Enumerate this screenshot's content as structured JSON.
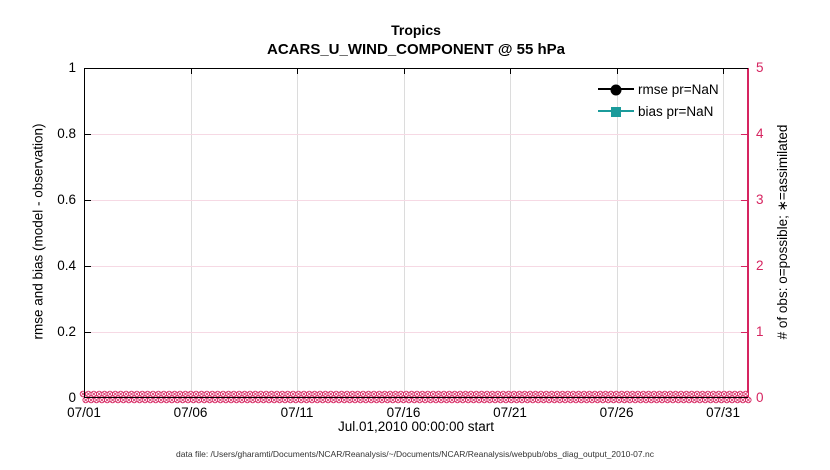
{
  "chart_data": {
    "type": "line",
    "title": "Tropics",
    "subtitle": "ACARS_U_WIND_COMPONENT @ 55 hPa",
    "xlabel": "Jul.01,2010 00:00:00 start",
    "ylabel_left": "rmse and bias (model - observation)",
    "ylabel_right": "# of obs: o=possible; ∗=assimilated",
    "footer": "data file: /Users/gharamti/Documents/NCAR/Reanalysis/~/Documents/NCAR/Reanalysis/webpub/obs_diag_output_2010-07.nc",
    "x_axis": {
      "lim_days": [
        0,
        31.17
      ],
      "tick_days": [
        0,
        5,
        10,
        15,
        20,
        25,
        30
      ],
      "tick_labels": [
        "07/01",
        "07/06",
        "07/11",
        "07/16",
        "07/21",
        "07/26",
        "07/31"
      ]
    },
    "y_axis_left": {
      "lim": [
        0,
        1
      ],
      "ticks": [
        0,
        0.2,
        0.4,
        0.6,
        0.8,
        1
      ],
      "tick_labels": [
        "0",
        "0.2",
        "0.4",
        "0.6",
        "0.8",
        "1"
      ],
      "color": "#000000"
    },
    "y_axis_right": {
      "lim": [
        0,
        5
      ],
      "ticks": [
        0,
        1,
        2,
        3,
        4,
        5
      ],
      "tick_labels": [
        "0",
        "1",
        "2",
        "3",
        "4",
        "5"
      ],
      "color": "#d62460"
    },
    "series": [
      {
        "name": "rmse pr=NaN",
        "color": "#000000",
        "marker": "circle",
        "values": "NaN"
      },
      {
        "name": "bias pr=NaN",
        "color": "#1b9b9b",
        "marker": "square",
        "values": "NaN"
      }
    ],
    "obs_counts": {
      "n_bins": 124,
      "possible_value": 0,
      "assimilated_value": 0,
      "possible_marker": "o",
      "assimilated_marker": "∗",
      "marker_color": "#d62460"
    },
    "grid": {
      "vertical_color": "#dcdcdc",
      "horizontal_color": "#f6d9e4"
    },
    "legend": {
      "position": "top-right"
    }
  }
}
